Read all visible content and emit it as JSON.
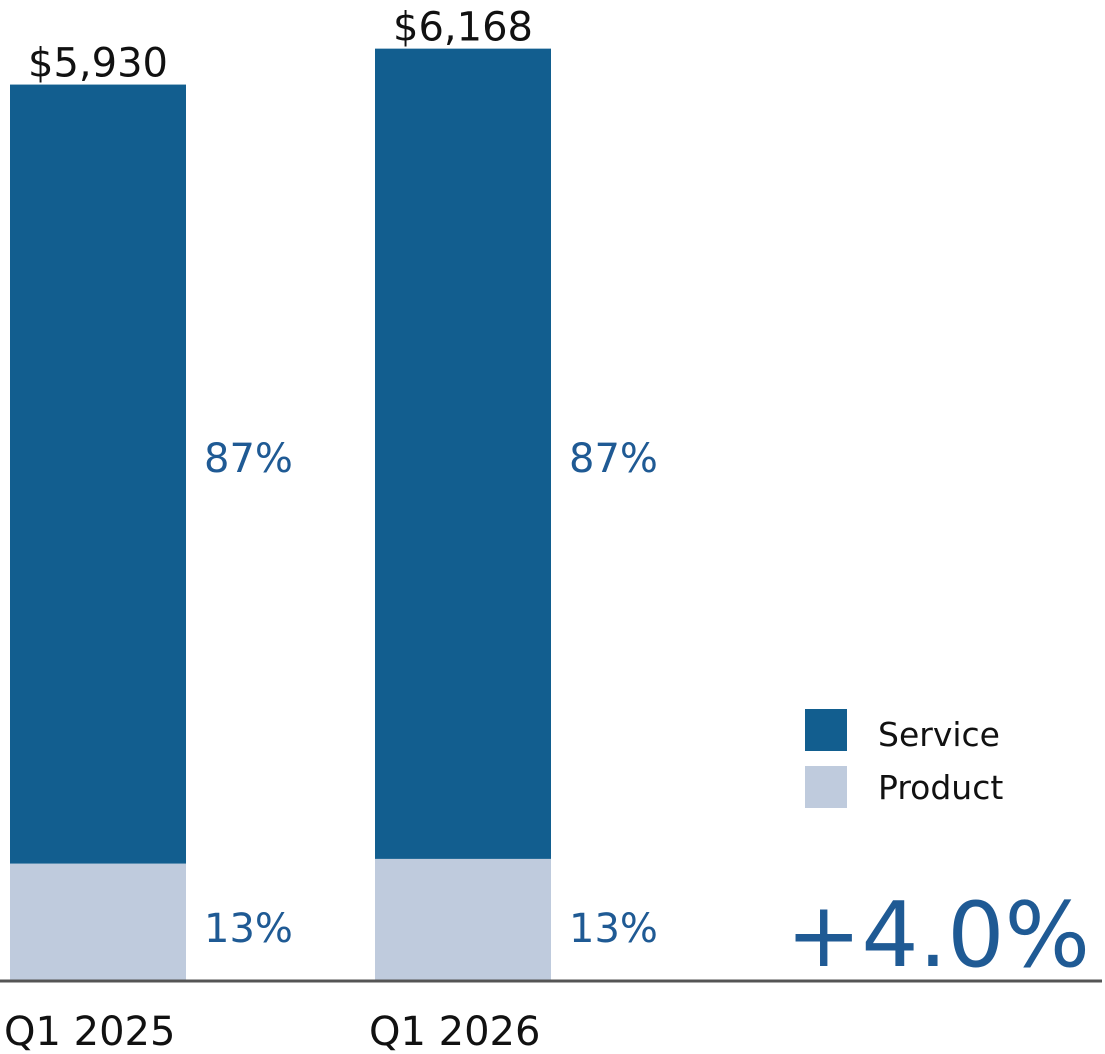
{
  "chart_data": {
    "type": "bar",
    "stacked": true,
    "categories": [
      "Q1 2025",
      "Q1 2026"
    ],
    "totals": [
      5930,
      6168
    ],
    "total_labels": [
      "$5,930",
      "$6,168"
    ],
    "series": [
      {
        "name": "Service",
        "color": "#125e8f",
        "share_labels": [
          "87%",
          "87%"
        ],
        "values": [
          5159,
          5366
        ]
      },
      {
        "name": "Product",
        "color": "#bfcbdd",
        "share_labels": [
          "13%",
          "13%"
        ],
        "values": [
          771,
          802
        ]
      }
    ],
    "legend_position": "right",
    "grid": false,
    "growth_label": "+4.0%"
  }
}
